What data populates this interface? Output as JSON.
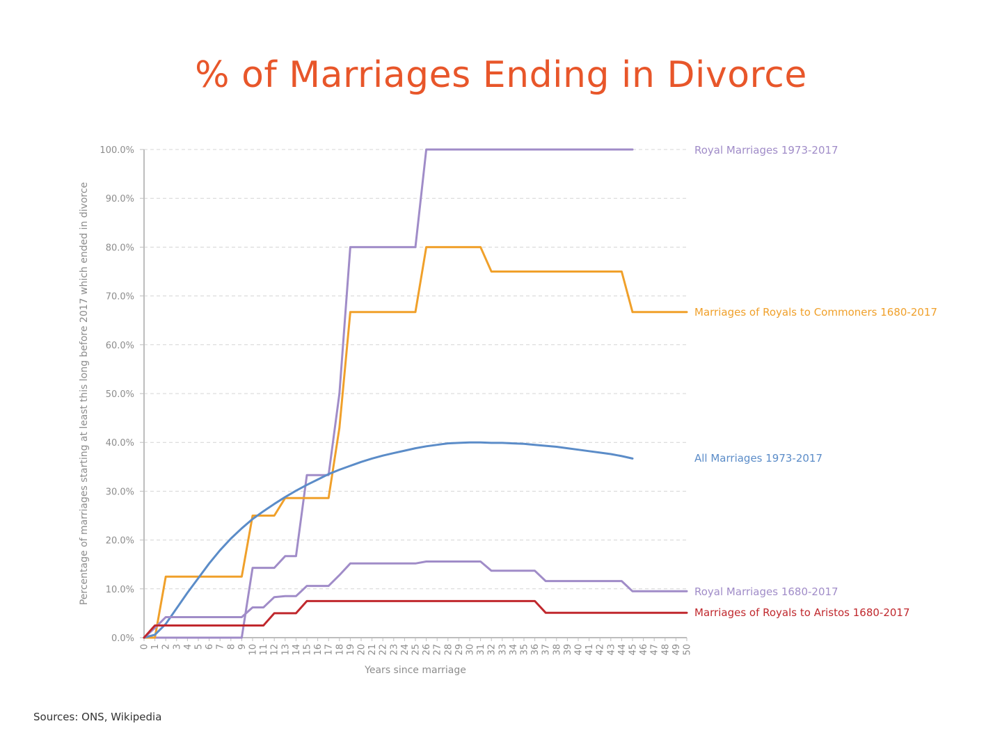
{
  "chart_data": {
    "type": "line",
    "title": "% of Marriages Ending in Divorce",
    "xlabel": "Years since marriage",
    "ylabel": "Percentage of marriages starting at least this long before 2017 which ended in divorce",
    "ylim": [
      0,
      100
    ],
    "xlim": [
      0,
      50
    ],
    "y_ticks": [
      "0.0%",
      "10.0%",
      "20.0%",
      "30.0%",
      "40.0%",
      "50.0%",
      "60.0%",
      "70.0%",
      "80.0%",
      "90.0%",
      "100.0%"
    ],
    "grid": "horizontal dashed",
    "legend": "labels at right end of lines",
    "series": [
      {
        "name": "Royal Marriages 1973-2017",
        "color": "#a08cc8",
        "x": [
          0,
          9,
          10,
          11,
          12,
          13,
          14,
          15,
          16,
          17,
          18,
          19,
          20,
          21,
          22,
          23,
          24,
          25,
          26,
          27,
          28,
          29,
          30,
          31,
          32,
          33,
          34,
          35,
          36,
          37,
          38,
          39,
          40,
          41,
          42,
          43,
          44,
          45
        ],
        "y": [
          0,
          0,
          14.3,
          14.3,
          14.3,
          16.7,
          16.7,
          33.3,
          33.3,
          33.3,
          50,
          80,
          80,
          80,
          80,
          80,
          80,
          80,
          100,
          100,
          100,
          100,
          100,
          100,
          100,
          100,
          100,
          100,
          100,
          100,
          100,
          100,
          100,
          100,
          100,
          100,
          100,
          100
        ]
      },
      {
        "name": "Marriages of Royals to Commoners 1680-2017",
        "color": "#f0a02a",
        "x": [
          0,
          1,
          2,
          3,
          4,
          5,
          6,
          7,
          8,
          9,
          10,
          11,
          12,
          13,
          14,
          15,
          16,
          17,
          18,
          19,
          20,
          21,
          22,
          23,
          24,
          25,
          26,
          27,
          28,
          29,
          30,
          31,
          32,
          33,
          34,
          35,
          36,
          37,
          38,
          39,
          40,
          41,
          42,
          43,
          44,
          45,
          46,
          47,
          48,
          49,
          50
        ],
        "y": [
          0,
          0,
          12.5,
          12.5,
          12.5,
          12.5,
          12.5,
          12.5,
          12.5,
          12.5,
          25,
          25,
          25,
          28.6,
          28.6,
          28.6,
          28.6,
          28.6,
          43,
          66.7,
          66.7,
          66.7,
          66.7,
          66.7,
          66.7,
          66.7,
          80,
          80,
          80,
          80,
          80,
          80,
          75,
          75,
          75,
          75,
          75,
          75,
          75,
          75,
          75,
          75,
          75,
          75,
          75,
          66.7,
          66.7,
          66.7,
          66.7,
          66.7,
          66.7
        ]
      },
      {
        "name": "All Marriages 1973-2017",
        "color": "#5b8cc8",
        "x": [
          0,
          1,
          2,
          3,
          4,
          5,
          6,
          7,
          8,
          9,
          10,
          11,
          12,
          13,
          14,
          15,
          16,
          17,
          18,
          19,
          20,
          21,
          22,
          23,
          24,
          25,
          26,
          27,
          28,
          29,
          30,
          31,
          32,
          33,
          34,
          35,
          36,
          37,
          38,
          39,
          40,
          41,
          42,
          43,
          44,
          45
        ],
        "y": [
          0,
          0.6,
          2.8,
          6.0,
          9.2,
          12.2,
          15.2,
          17.9,
          20.3,
          22.4,
          24.3,
          25.9,
          27.4,
          28.8,
          30.1,
          31.3,
          32.4,
          33.5,
          34.4,
          35.2,
          36.0,
          36.7,
          37.3,
          37.8,
          38.3,
          38.8,
          39.2,
          39.5,
          39.8,
          39.9,
          40.0,
          40.0,
          39.9,
          39.9,
          39.8,
          39.7,
          39.5,
          39.3,
          39.1,
          38.8,
          38.5,
          38.2,
          37.9,
          37.6,
          37.2,
          36.7
        ]
      },
      {
        "name": "Royal Marriages 1680-2017",
        "color": "#a08cc8",
        "x": [
          0,
          1,
          2,
          3,
          4,
          5,
          6,
          7,
          8,
          9,
          10,
          11,
          12,
          13,
          14,
          15,
          16,
          17,
          18,
          19,
          20,
          21,
          22,
          23,
          24,
          25,
          26,
          27,
          28,
          29,
          30,
          31,
          32,
          33,
          34,
          35,
          36,
          37,
          38,
          39,
          40,
          41,
          42,
          43,
          44,
          45,
          46,
          47,
          48,
          49,
          50
        ],
        "y": [
          0,
          2,
          4.2,
          4.2,
          4.2,
          4.2,
          4.2,
          4.2,
          4.2,
          4.2,
          6.2,
          6.2,
          8.3,
          8.5,
          8.5,
          10.6,
          10.6,
          10.6,
          12.8,
          15.2,
          15.2,
          15.2,
          15.2,
          15.2,
          15.2,
          15.2,
          15.6,
          15.6,
          15.6,
          15.6,
          15.6,
          15.6,
          13.7,
          13.7,
          13.7,
          13.7,
          13.7,
          11.6,
          11.6,
          11.6,
          11.6,
          11.6,
          11.6,
          11.6,
          11.6,
          9.5,
          9.5,
          9.5,
          9.5,
          9.5,
          9.5
        ]
      },
      {
        "name": "Marriages of Royals to Aristos 1680-2017",
        "color": "#c0282d",
        "x": [
          0,
          1,
          2,
          3,
          4,
          5,
          6,
          7,
          8,
          9,
          10,
          11,
          12,
          13,
          14,
          15,
          16,
          17,
          18,
          19,
          20,
          21,
          22,
          23,
          24,
          25,
          26,
          27,
          28,
          29,
          30,
          31,
          32,
          33,
          34,
          35,
          36,
          37,
          38,
          39,
          40,
          41,
          42,
          43,
          44,
          45,
          46,
          47,
          48,
          49,
          50
        ],
        "y": [
          0,
          2.5,
          2.5,
          2.5,
          2.5,
          2.5,
          2.5,
          2.5,
          2.5,
          2.5,
          2.5,
          2.5,
          5.0,
          5.0,
          5.0,
          7.5,
          7.5,
          7.5,
          7.5,
          7.5,
          7.5,
          7.5,
          7.5,
          7.5,
          7.5,
          7.5,
          7.5,
          7.5,
          7.5,
          7.5,
          7.5,
          7.5,
          7.5,
          7.5,
          7.5,
          7.5,
          7.5,
          5.1,
          5.1,
          5.1,
          5.1,
          5.1,
          5.1,
          5.1,
          5.1,
          5.1,
          5.1,
          5.1,
          5.1,
          5.1,
          5.1
        ]
      }
    ]
  },
  "footer": {
    "sources": "Sources: ONS, Wikipedia"
  }
}
